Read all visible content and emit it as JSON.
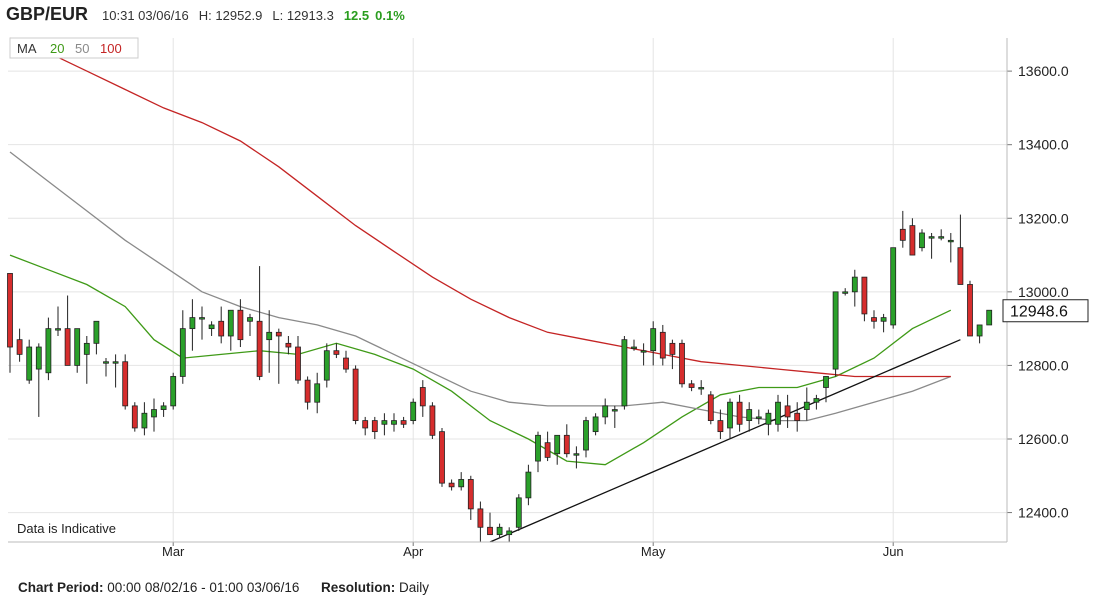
{
  "header": {
    "symbol": "GBP/EUR",
    "datetime": "10:31 03/06/16",
    "high": "H: 12952.9",
    "low": "L: 12913.3",
    "change": "12.5",
    "change_pct": "0.1%",
    "change_color": "#2a9d1f"
  },
  "ma_legend": {
    "label": "MA",
    "items": [
      {
        "text": "20",
        "color": "#3f9a17"
      },
      {
        "text": "50",
        "color": "#8a8a8a"
      },
      {
        "text": "100",
        "color": "#c42424"
      }
    ]
  },
  "watermark": "Data is Indicative",
  "last_price_label": "12948.6",
  "footer": {
    "period_label": "Chart Period:",
    "period_value": "00:00 08/02/16 - 01:00 03/06/16",
    "resolution_label": "Resolution:",
    "resolution_value": "Daily"
  },
  "colors": {
    "up": "#2aa02a",
    "down": "#d62d2d",
    "grid": "#e4e4e4",
    "frame": "#bbbbbb"
  },
  "chart_data": {
    "type": "candlestick",
    "title": "GBP/EUR",
    "ylim": [
      12320,
      13690
    ],
    "y_ticks": [
      12400,
      12600,
      12800,
      13000,
      13200,
      13400,
      13600
    ],
    "y_tick_labels": [
      "12400.0",
      "12600.0",
      "12800.0",
      "13000.0",
      "13200.0",
      "13400.0",
      "13600.0"
    ],
    "x_labels": [
      {
        "label": "Mar",
        "index": 17
      },
      {
        "label": "Apr",
        "index": 42
      },
      {
        "label": "May",
        "index": 67
      },
      {
        "label": "Jun",
        "index": 92
      }
    ],
    "candles": [
      [
        13050,
        13050,
        12780,
        12850
      ],
      [
        12870,
        12900,
        12810,
        12830
      ],
      [
        12760,
        12870,
        12750,
        12850
      ],
      [
        12790,
        12860,
        12660,
        12850
      ],
      [
        12780,
        12930,
        12760,
        12900
      ],
      [
        12900,
        12960,
        12880,
        12900
      ],
      [
        12900,
        12990,
        12800,
        12800
      ],
      [
        12800,
        12900,
        12780,
        12900
      ],
      [
        12830,
        12880,
        12750,
        12860
      ],
      [
        12860,
        12920,
        12830,
        12920
      ],
      [
        12810,
        12820,
        12770,
        12810
      ],
      [
        12810,
        12830,
        12740,
        12810
      ],
      [
        12810,
        12830,
        12680,
        12690
      ],
      [
        12690,
        12700,
        12620,
        12630
      ],
      [
        12630,
        12700,
        12610,
        12670
      ],
      [
        12660,
        12710,
        12620,
        12680
      ],
      [
        12680,
        12700,
        12660,
        12690
      ],
      [
        12690,
        12780,
        12680,
        12770
      ],
      [
        12770,
        12950,
        12750,
        12900
      ],
      [
        12900,
        12980,
        12840,
        12930
      ],
      [
        12930,
        12960,
        12870,
        12930
      ],
      [
        12900,
        12920,
        12880,
        12910
      ],
      [
        12920,
        12960,
        12860,
        12880
      ],
      [
        12880,
        12950,
        12840,
        12950
      ],
      [
        12950,
        12980,
        12850,
        12870
      ],
      [
        12920,
        12940,
        12880,
        12930
      ],
      [
        12920,
        13070,
        12760,
        12770
      ],
      [
        12870,
        12950,
        12780,
        12890
      ],
      [
        12890,
        12900,
        12750,
        12880
      ],
      [
        12860,
        12880,
        12830,
        12850
      ],
      [
        12850,
        12880,
        12750,
        12760
      ],
      [
        12760,
        12770,
        12680,
        12700
      ],
      [
        12700,
        12780,
        12670,
        12750
      ],
      [
        12760,
        12860,
        12740,
        12840
      ],
      [
        12840,
        12860,
        12820,
        12830
      ],
      [
        12820,
        12840,
        12780,
        12790
      ],
      [
        12790,
        12800,
        12640,
        12650
      ],
      [
        12650,
        12660,
        12610,
        12630
      ],
      [
        12650,
        12660,
        12600,
        12620
      ],
      [
        12640,
        12670,
        12610,
        12650
      ],
      [
        12640,
        12670,
        12620,
        12650
      ],
      [
        12650,
        12660,
        12630,
        12640
      ],
      [
        12650,
        12710,
        12640,
        12700
      ],
      [
        12740,
        12760,
        12660,
        12690
      ],
      [
        12690,
        12700,
        12600,
        12610
      ],
      [
        12620,
        12630,
        12470,
        12480
      ],
      [
        12480,
        12490,
        12460,
        12470
      ],
      [
        12470,
        12510,
        12460,
        12490
      ],
      [
        12490,
        12500,
        12380,
        12410
      ],
      [
        12410,
        12430,
        12320,
        12360
      ],
      [
        12360,
        12400,
        12340,
        12340
      ],
      [
        12340,
        12370,
        12330,
        12360
      ],
      [
        12340,
        12360,
        12320,
        12350
      ],
      [
        12360,
        12450,
        12350,
        12440
      ],
      [
        12440,
        12530,
        12420,
        12510
      ],
      [
        12540,
        12620,
        12510,
        12610
      ],
      [
        12590,
        12620,
        12540,
        12550
      ],
      [
        12560,
        12610,
        12530,
        12610
      ],
      [
        12610,
        12640,
        12550,
        12560
      ],
      [
        12560,
        12580,
        12520,
        12560
      ],
      [
        12570,
        12660,
        12550,
        12650
      ],
      [
        12620,
        12670,
        12610,
        12660
      ],
      [
        12660,
        12710,
        12640,
        12690
      ],
      [
        12680,
        12690,
        12630,
        12680
      ],
      [
        12690,
        12880,
        12680,
        12870
      ],
      [
        12850,
        12870,
        12840,
        12850
      ],
      [
        12840,
        12860,
        12800,
        12840
      ],
      [
        12840,
        12920,
        12800,
        12900
      ],
      [
        12890,
        12910,
        12800,
        12820
      ],
      [
        12860,
        12870,
        12790,
        12830
      ],
      [
        12860,
        12870,
        12740,
        12750
      ],
      [
        12750,
        12760,
        12730,
        12740
      ],
      [
        12740,
        12760,
        12720,
        12740
      ],
      [
        12720,
        12730,
        12640,
        12650
      ],
      [
        12650,
        12680,
        12600,
        12620
      ],
      [
        12630,
        12710,
        12600,
        12700
      ],
      [
        12700,
        12720,
        12620,
        12640
      ],
      [
        12650,
        12700,
        12620,
        12680
      ],
      [
        12660,
        12680,
        12640,
        12660
      ],
      [
        12640,
        12680,
        12610,
        12670
      ],
      [
        12640,
        12720,
        12620,
        12700
      ],
      [
        12690,
        12720,
        12630,
        12660
      ],
      [
        12670,
        12700,
        12620,
        12650
      ],
      [
        12680,
        12740,
        12650,
        12700
      ],
      [
        12700,
        12720,
        12680,
        12710
      ],
      [
        12740,
        12770,
        12700,
        12770
      ],
      [
        12790,
        13000,
        12770,
        13000
      ],
      [
        13000,
        13010,
        12990,
        13000
      ],
      [
        13000,
        13060,
        12960,
        13040
      ],
      [
        13040,
        13040,
        12920,
        12940
      ],
      [
        12930,
        12950,
        12900,
        12920
      ],
      [
        12920,
        12940,
        12890,
        12930
      ],
      [
        12910,
        13120,
        12900,
        13120
      ],
      [
        13170,
        13220,
        13120,
        13140
      ],
      [
        13180,
        13200,
        13100,
        13100
      ],
      [
        13120,
        13170,
        13110,
        13160
      ],
      [
        13150,
        13160,
        13090,
        13150
      ],
      [
        13150,
        13170,
        13140,
        13150
      ],
      [
        13140,
        13160,
        13080,
        13140
      ],
      [
        13120,
        13210,
        13020,
        13020
      ],
      [
        13020,
        13030,
        12880,
        12880
      ],
      [
        12880,
        12910,
        12860,
        12910
      ],
      [
        12910,
        12950,
        12910,
        12950
      ]
    ],
    "ma_series": [
      {
        "name": "20",
        "color": "#3f9a17",
        "points": [
          [
            0,
            13100
          ],
          [
            4,
            13060
          ],
          [
            8,
            13020
          ],
          [
            12,
            12960
          ],
          [
            15,
            12870
          ],
          [
            18,
            12820
          ],
          [
            22,
            12830
          ],
          [
            26,
            12840
          ],
          [
            30,
            12830
          ],
          [
            34,
            12860
          ],
          [
            38,
            12830
          ],
          [
            42,
            12790
          ],
          [
            46,
            12730
          ],
          [
            50,
            12650
          ],
          [
            54,
            12600
          ],
          [
            58,
            12540
          ],
          [
            62,
            12530
          ],
          [
            66,
            12590
          ],
          [
            70,
            12660
          ],
          [
            74,
            12720
          ],
          [
            78,
            12740
          ],
          [
            82,
            12740
          ],
          [
            86,
            12770
          ],
          [
            90,
            12820
          ],
          [
            94,
            12900
          ],
          [
            98,
            12950
          ]
        ]
      },
      {
        "name": "50",
        "color": "#8a8a8a",
        "points": [
          [
            0,
            13380
          ],
          [
            4,
            13300
          ],
          [
            8,
            13220
          ],
          [
            12,
            13140
          ],
          [
            16,
            13070
          ],
          [
            20,
            13000
          ],
          [
            24,
            12960
          ],
          [
            28,
            12930
          ],
          [
            32,
            12910
          ],
          [
            36,
            12880
          ],
          [
            40,
            12830
          ],
          [
            44,
            12780
          ],
          [
            48,
            12730
          ],
          [
            52,
            12700
          ],
          [
            56,
            12690
          ],
          [
            60,
            12690
          ],
          [
            64,
            12690
          ],
          [
            68,
            12700
          ],
          [
            72,
            12680
          ],
          [
            76,
            12660
          ],
          [
            80,
            12650
          ],
          [
            83,
            12650
          ],
          [
            86,
            12670
          ],
          [
            90,
            12700
          ],
          [
            94,
            12730
          ],
          [
            98,
            12770
          ]
        ]
      },
      {
        "name": "100",
        "color": "#c42424",
        "points": [
          [
            0,
            13690
          ],
          [
            4,
            13650
          ],
          [
            8,
            13600
          ],
          [
            12,
            13550
          ],
          [
            16,
            13500
          ],
          [
            20,
            13460
          ],
          [
            24,
            13410
          ],
          [
            28,
            13340
          ],
          [
            32,
            13260
          ],
          [
            36,
            13180
          ],
          [
            40,
            13110
          ],
          [
            44,
            13040
          ],
          [
            48,
            12980
          ],
          [
            52,
            12930
          ],
          [
            56,
            12890
          ],
          [
            60,
            12870
          ],
          [
            64,
            12850
          ],
          [
            68,
            12830
          ],
          [
            72,
            12810
          ],
          [
            76,
            12800
          ],
          [
            80,
            12790
          ],
          [
            84,
            12780
          ],
          [
            88,
            12770
          ],
          [
            92,
            12770
          ],
          [
            96,
            12770
          ],
          [
            98,
            12770
          ]
        ]
      }
    ],
    "trendline": [
      [
        50,
        12320
      ],
      [
        99,
        12870
      ]
    ]
  }
}
